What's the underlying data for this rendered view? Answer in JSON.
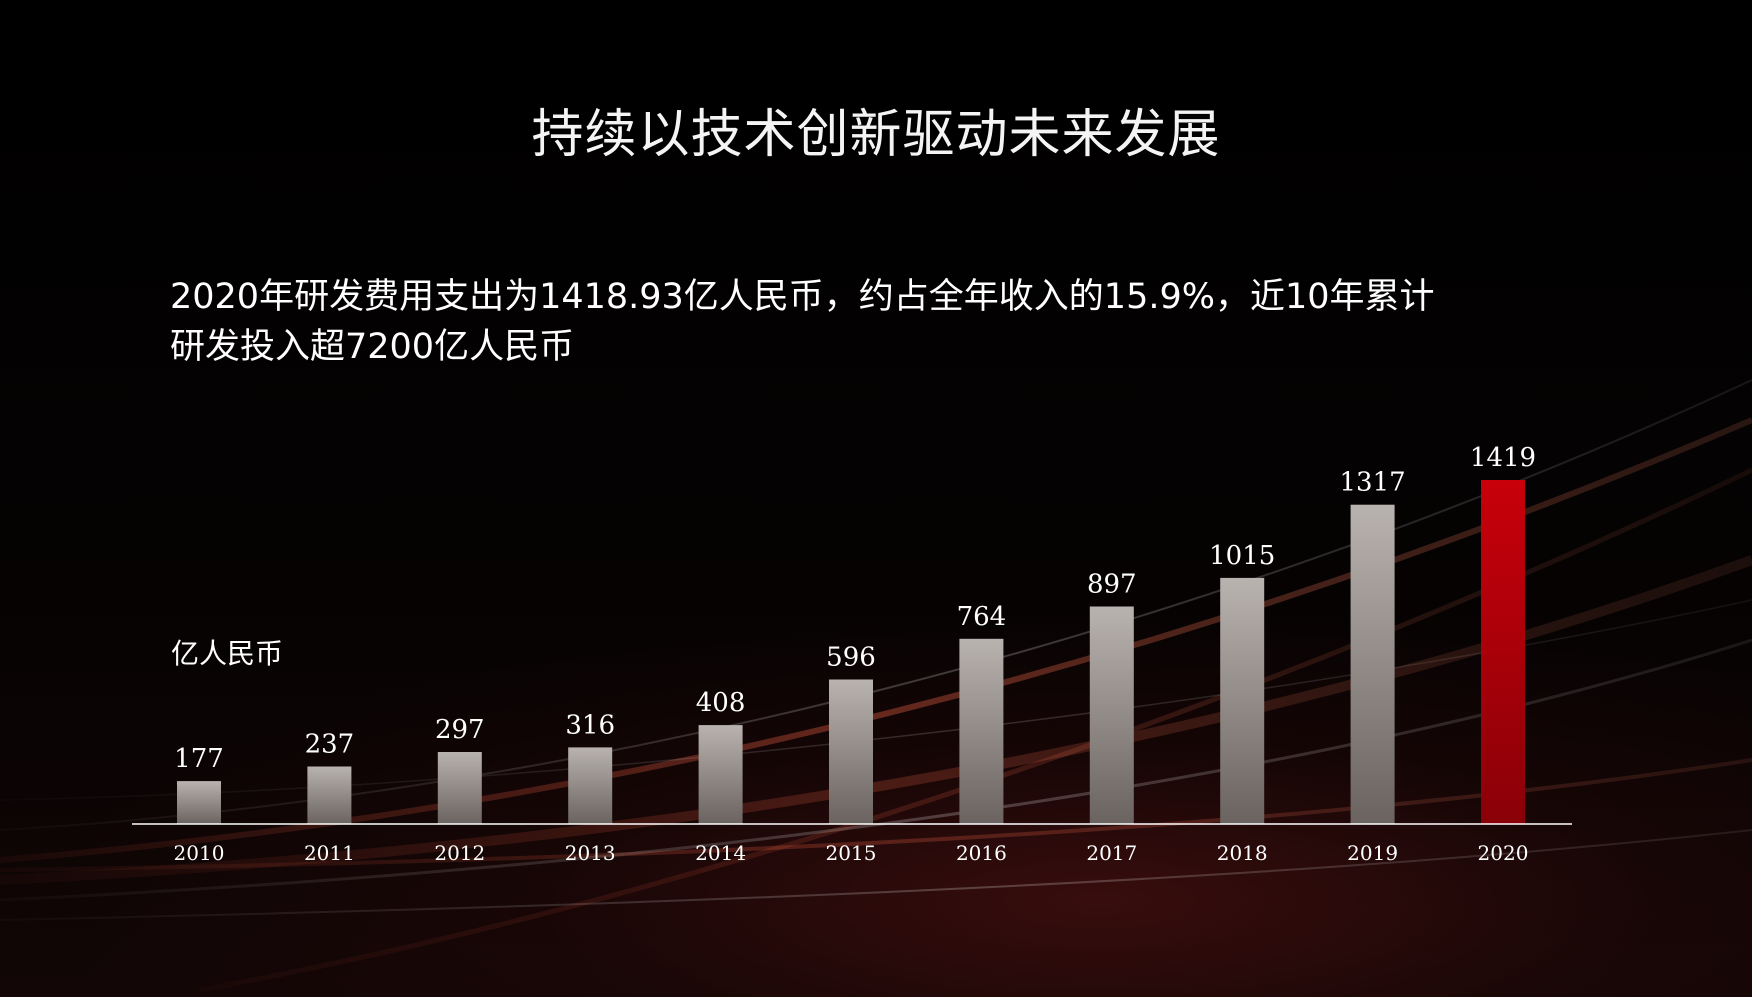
{
  "title": "持续以技术创新驱动未来发展",
  "subtitle": {
    "line1": "2020年研发费用支出为1418.93亿人民币，约占全年收入的15.9%，近10年累计",
    "line2": "研发投入超7200亿人民币"
  },
  "unit_label": "亿人民币",
  "colors": {
    "bar_gray_top": "#b9b3b0",
    "bar_gray_bottom": "#6a6360",
    "bar_highlight_top": "#c8000a",
    "bar_highlight_bottom": "#8a0008",
    "axis_line": "#ffffff"
  },
  "chart_data": {
    "type": "bar",
    "categories": [
      "2010",
      "2011",
      "2012",
      "2013",
      "2014",
      "2015",
      "2016",
      "2017",
      "2018",
      "2019",
      "2020"
    ],
    "values": [
      177,
      237,
      297,
      316,
      408,
      596,
      764,
      897,
      1015,
      1317,
      1419
    ],
    "value_labels": [
      "177",
      "237",
      "297",
      "316",
      "408",
      "596",
      "764",
      "897",
      "1015",
      "1317",
      "1419"
    ],
    "highlight_category": "2020",
    "ylim": [
      0,
      1419
    ],
    "ylabel": "亿人民币",
    "xlabel": "",
    "grid": false,
    "legend": "none"
  }
}
